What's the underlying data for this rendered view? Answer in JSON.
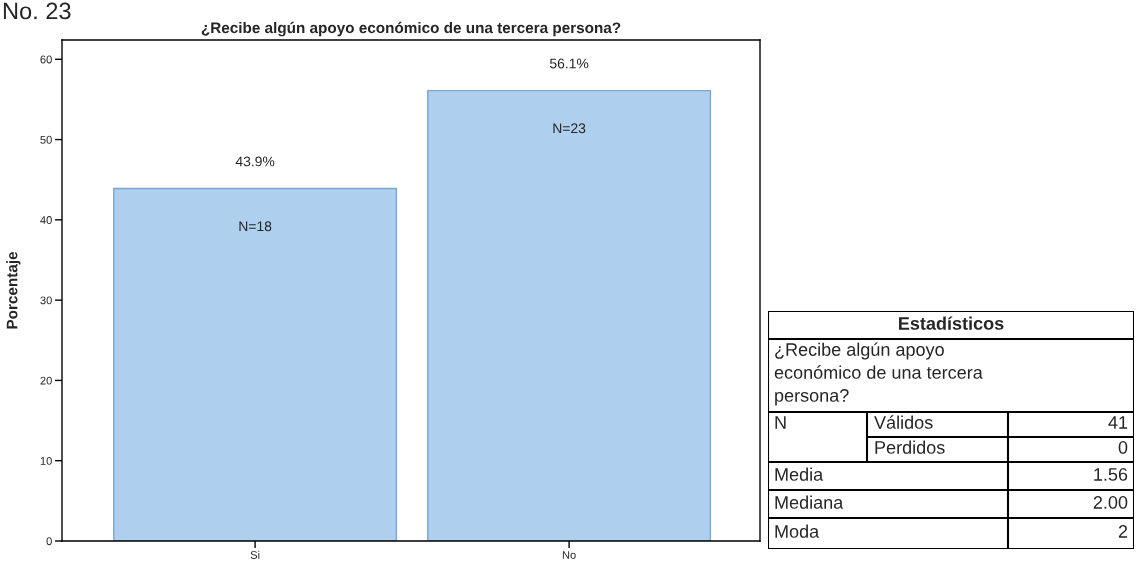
{
  "chart_data": [
    {
      "type": "bar",
      "title": "¿Recibe algún apoyo económico de una tercera persona?",
      "ylabel": "Porcentaje",
      "categories": [
        "Si",
        "No"
      ],
      "values": [
        43.9,
        56.1
      ],
      "color": "#aecfed",
      "value_labels": [
        "43.9%",
        "56.1%"
      ],
      "ylim": [
        0,
        62.4
      ],
      "yticks": [
        0,
        10,
        20,
        30,
        40,
        50,
        60
      ],
      "grid": false,
      "legend": false,
      "annotations": [
        "No. 23",
        {
          "text": "N=18",
          "x": "Si",
          "y": 43.9
        },
        {
          "text": "N=23",
          "x": "No",
          "y": 56.1
        }
      ]
    },
    {
      "type": "other",
      "title": "Estadísticos",
      "annotations": [
        "¿Recibe algún apoyo económico de una tercera persona?",
        "N",
        "Válidos",
        "41",
        "Perdidos",
        "0",
        "Media",
        "1.56",
        "Mediana",
        "2.00",
        "Moda",
        "2"
      ]
    }
  ]
}
